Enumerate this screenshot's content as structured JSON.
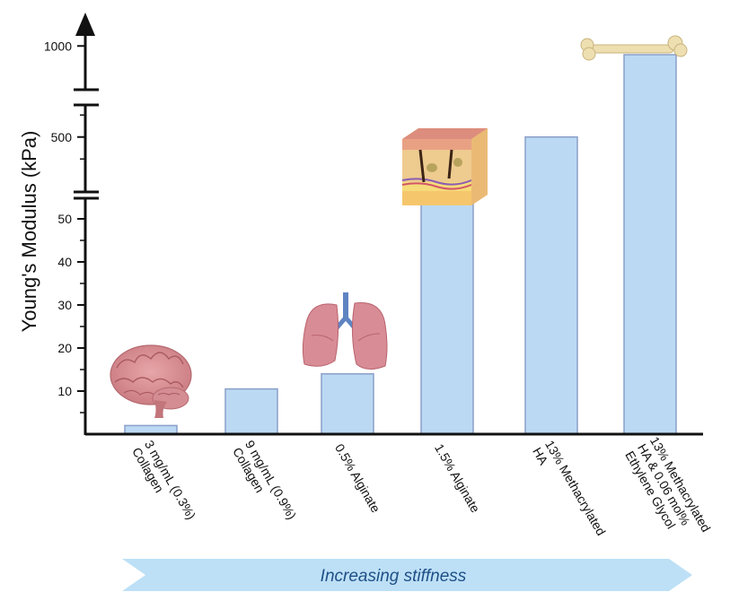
{
  "chart_data": {
    "type": "bar",
    "ylabel": "Young's Modulus (kPa)",
    "xlabel": "",
    "categories": [
      [
        "3 mg/mL (0.3%)",
        "Collagen"
      ],
      [
        "9 mg/mL (0.9%)",
        "Collagen"
      ],
      [
        "0.5% Alginate"
      ],
      [
        "1.5% Alginate"
      ],
      [
        "13% Methacrylated",
        "HA"
      ],
      [
        "13% Methacrylated",
        "HA & 0.06 mol%",
        "Ethylene Glycol"
      ]
    ],
    "values": [
      2,
      10.5,
      14,
      55,
      500,
      950
    ],
    "y_axis": {
      "scale": "broken",
      "segments": [
        [
          0,
          55
        ],
        [
          250,
          650
        ],
        [
          750,
          1150
        ]
      ],
      "ticks": [
        {
          "value": 10,
          "label": "10"
        },
        {
          "value": 20,
          "label": "20"
        },
        {
          "value": 30,
          "label": "30"
        },
        {
          "value": 40,
          "label": "40"
        },
        {
          "value": 50,
          "label": "50"
        },
        {
          "value": 500,
          "label": "500"
        },
        {
          "value": 1000,
          "label": "1000"
        }
      ]
    },
    "bar_color": "#bcd9f3",
    "bar_edge_color": "#8a9fc9",
    "tissue_icons": [
      "brain-icon",
      "lungs-icon",
      "skin-icon",
      "bone-icon"
    ],
    "grid": false,
    "legend": "none"
  },
  "banner": {
    "text": "Increasing stiffness",
    "color": "#bde0f6",
    "text_color": "#1e4f86"
  }
}
